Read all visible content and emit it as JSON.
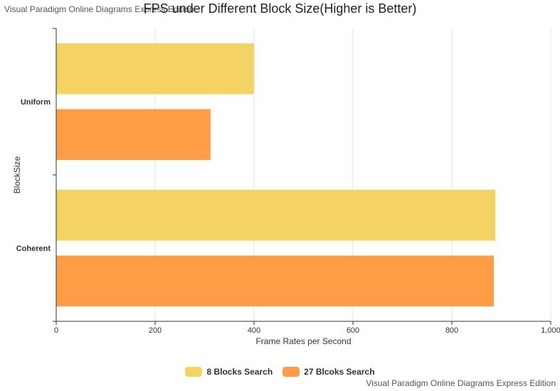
{
  "watermark_top": "Visual Paradigm Online Diagrams Express Edition",
  "watermark_bottom": "Visual Paradigm Online Diagrams Express Edition",
  "chart_data": {
    "type": "bar",
    "orientation": "horizontal",
    "title": "FPS under Different Block Size(Higher is Better)",
    "xlabel": "Frame Rates per Second",
    "ylabel": "BlockSize",
    "categories": [
      "Uniform",
      "Coherent"
    ],
    "series": [
      {
        "name": "8 Blocks Search",
        "values": [
          400,
          888
        ],
        "color": "#f4d263"
      },
      {
        "name": "27 Blcoks Search",
        "values": [
          312,
          885
        ],
        "color": "#ff9c45"
      }
    ],
    "xlim": [
      0,
      1000
    ],
    "x_ticks": [
      "0",
      "200",
      "400",
      "600",
      "800",
      "1,000"
    ],
    "x_tick_values": [
      0,
      200,
      400,
      600,
      800,
      1000
    ],
    "grid": true,
    "legend_position": "bottom"
  }
}
